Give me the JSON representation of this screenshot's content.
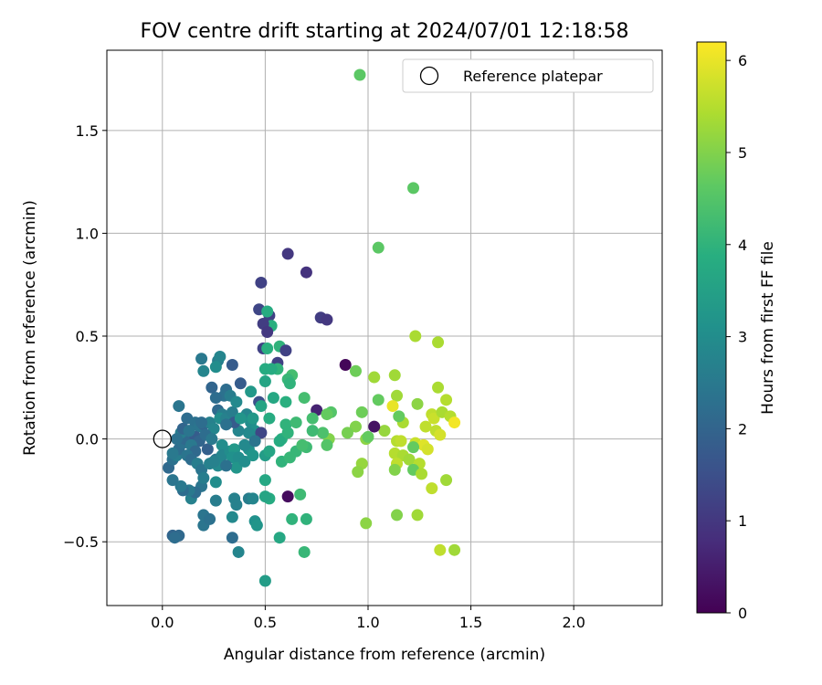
{
  "chart_data": {
    "type": "scatter",
    "title": "FOV centre drift starting at 2024/07/01 12:18:58",
    "xlabel": "Angular distance from reference (arcmin)",
    "ylabel": "Rotation from reference (arcmin)",
    "xlim": [
      -0.27,
      2.43
    ],
    "ylim": [
      -0.81,
      1.89
    ],
    "xticks": [
      0.0,
      0.5,
      1.0,
      1.5,
      2.0
    ],
    "yticks": [
      -0.5,
      0.0,
      0.5,
      1.0,
      1.5
    ],
    "xtick_labels": [
      "0.0",
      "0.5",
      "1.0",
      "1.5",
      "2.0"
    ],
    "ytick_labels": [
      "−0.5",
      "0.0",
      "0.5",
      "1.0",
      "1.5"
    ],
    "grid": true,
    "legend": {
      "placement": "top-right",
      "entries": [
        "Reference platepar"
      ]
    },
    "colormap": "viridis",
    "colorbar": {
      "label": "Hours from first FF file",
      "range": [
        0,
        6.2
      ],
      "ticks": [
        0,
        1,
        2,
        3,
        4,
        5,
        6
      ],
      "tick_labels": [
        "0",
        "1",
        "2",
        "3",
        "4",
        "5",
        "6"
      ]
    },
    "reference_point": {
      "x": 0.0,
      "y": 0.0
    },
    "points": [
      {
        "x": 0.96,
        "y": 1.77,
        "c": 4.6
      },
      {
        "x": 1.22,
        "y": 1.22,
        "c": 4.6
      },
      {
        "x": 1.05,
        "y": 0.93,
        "c": 4.6
      },
      {
        "x": 0.61,
        "y": 0.9,
        "c": 1.0
      },
      {
        "x": 0.7,
        "y": 0.81,
        "c": 0.9
      },
      {
        "x": 0.48,
        "y": 0.76,
        "c": 1.2
      },
      {
        "x": 0.47,
        "y": 0.63,
        "c": 1.3
      },
      {
        "x": 0.52,
        "y": 0.6,
        "c": 1.2
      },
      {
        "x": 0.51,
        "y": 0.62,
        "c": 3.8
      },
      {
        "x": 0.53,
        "y": 0.55,
        "c": 3.9
      },
      {
        "x": 0.49,
        "y": 0.56,
        "c": 1.1
      },
      {
        "x": 0.51,
        "y": 0.52,
        "c": 1.0
      },
      {
        "x": 0.77,
        "y": 0.59,
        "c": 1.1
      },
      {
        "x": 0.8,
        "y": 0.58,
        "c": 1.0
      },
      {
        "x": 0.49,
        "y": 0.44,
        "c": 1.2
      },
      {
        "x": 0.51,
        "y": 0.44,
        "c": 3.9
      },
      {
        "x": 0.57,
        "y": 0.45,
        "c": 4.0
      },
      {
        "x": 0.6,
        "y": 0.43,
        "c": 1.2
      },
      {
        "x": 0.56,
        "y": 0.37,
        "c": 1.2
      },
      {
        "x": 0.56,
        "y": 0.34,
        "c": 4.0
      },
      {
        "x": 0.5,
        "y": 0.34,
        "c": 3.8
      },
      {
        "x": 0.53,
        "y": 0.34,
        "c": 3.8
      },
      {
        "x": 0.63,
        "y": 0.31,
        "c": 4.3
      },
      {
        "x": 0.61,
        "y": 0.29,
        "c": 4.1
      },
      {
        "x": 0.62,
        "y": 0.27,
        "c": 4.0
      },
      {
        "x": 0.5,
        "y": 0.28,
        "c": 3.6
      },
      {
        "x": 0.38,
        "y": 0.27,
        "c": 1.8
      },
      {
        "x": 0.34,
        "y": 0.36,
        "c": 1.8
      },
      {
        "x": 0.27,
        "y": 0.38,
        "c": 2.6
      },
      {
        "x": 0.28,
        "y": 0.4,
        "c": 2.8
      },
      {
        "x": 0.26,
        "y": 0.35,
        "c": 3.0
      },
      {
        "x": 0.2,
        "y": 0.33,
        "c": 2.8
      },
      {
        "x": 0.19,
        "y": 0.39,
        "c": 2.5
      },
      {
        "x": 0.24,
        "y": 0.25,
        "c": 2.0
      },
      {
        "x": 0.31,
        "y": 0.24,
        "c": 2.2
      },
      {
        "x": 0.3,
        "y": 0.21,
        "c": 2.3
      },
      {
        "x": 0.33,
        "y": 0.21,
        "c": 2.6
      },
      {
        "x": 0.26,
        "y": 0.2,
        "c": 2.2
      },
      {
        "x": 0.43,
        "y": 0.23,
        "c": 3.3
      },
      {
        "x": 0.47,
        "y": 0.18,
        "c": 1.5
      },
      {
        "x": 0.48,
        "y": 0.16,
        "c": 3.6
      },
      {
        "x": 0.54,
        "y": 0.2,
        "c": 3.7
      },
      {
        "x": 0.6,
        "y": 0.18,
        "c": 3.9
      },
      {
        "x": 0.69,
        "y": 0.2,
        "c": 4.3
      },
      {
        "x": 0.75,
        "y": 0.14,
        "c": 0.6
      },
      {
        "x": 0.82,
        "y": 0.13,
        "c": 4.5
      },
      {
        "x": 0.8,
        "y": 0.12,
        "c": 4.7
      },
      {
        "x": 0.73,
        "y": 0.1,
        "c": 4.3
      },
      {
        "x": 0.89,
        "y": 0.36,
        "c": 0.1
      },
      {
        "x": 0.94,
        "y": 0.33,
        "c": 4.8
      },
      {
        "x": 1.03,
        "y": 0.3,
        "c": 5.3
      },
      {
        "x": 1.13,
        "y": 0.31,
        "c": 5.3
      },
      {
        "x": 1.14,
        "y": 0.21,
        "c": 5.3
      },
      {
        "x": 1.05,
        "y": 0.19,
        "c": 4.7
      },
      {
        "x": 0.97,
        "y": 0.13,
        "c": 4.8
      },
      {
        "x": 1.12,
        "y": 0.16,
        "c": 6.0
      },
      {
        "x": 1.17,
        "y": 0.08,
        "c": 5.4
      },
      {
        "x": 1.23,
        "y": 0.5,
        "c": 5.4
      },
      {
        "x": 1.34,
        "y": 0.47,
        "c": 5.4
      },
      {
        "x": 1.34,
        "y": 0.25,
        "c": 5.4
      },
      {
        "x": 1.38,
        "y": 0.19,
        "c": 5.5
      },
      {
        "x": 1.24,
        "y": 0.17,
        "c": 5.1
      },
      {
        "x": 1.31,
        "y": 0.12,
        "c": 5.6
      },
      {
        "x": 1.32,
        "y": 0.1,
        "c": 5.7
      },
      {
        "x": 1.36,
        "y": 0.13,
        "c": 5.4
      },
      {
        "x": 1.4,
        "y": 0.11,
        "c": 5.5
      },
      {
        "x": 1.42,
        "y": 0.08,
        "c": 6.1
      },
      {
        "x": 1.28,
        "y": 0.06,
        "c": 5.6
      },
      {
        "x": 1.33,
        "y": 0.04,
        "c": 5.6
      },
      {
        "x": 1.35,
        "y": 0.02,
        "c": 5.8
      },
      {
        "x": 1.23,
        "y": -0.02,
        "c": 5.7
      },
      {
        "x": 1.27,
        "y": -0.03,
        "c": 5.9
      },
      {
        "x": 1.29,
        "y": -0.05,
        "c": 5.8
      },
      {
        "x": 1.22,
        "y": -0.04,
        "c": 4.7
      },
      {
        "x": 1.15,
        "y": 0.11,
        "c": 4.7
      },
      {
        "x": 1.08,
        "y": 0.04,
        "c": 5.2
      },
      {
        "x": 1.03,
        "y": 0.06,
        "c": 0.3
      },
      {
        "x": 0.99,
        "y": 0.0,
        "c": 5.1
      },
      {
        "x": 1.0,
        "y": 0.01,
        "c": 4.7
      },
      {
        "x": 0.94,
        "y": 0.06,
        "c": 5.0
      },
      {
        "x": 0.9,
        "y": 0.03,
        "c": 4.9
      },
      {
        "x": 0.81,
        "y": 0.0,
        "c": 5.0
      },
      {
        "x": 0.8,
        "y": -0.03,
        "c": 4.5
      },
      {
        "x": 0.78,
        "y": 0.03,
        "c": 4.4
      },
      {
        "x": 0.73,
        "y": 0.04,
        "c": 4.2
      },
      {
        "x": 1.14,
        "y": -0.01,
        "c": 5.5
      },
      {
        "x": 1.16,
        "y": -0.01,
        "c": 5.6
      },
      {
        "x": 1.13,
        "y": -0.07,
        "c": 5.5
      },
      {
        "x": 1.17,
        "y": -0.08,
        "c": 5.4
      },
      {
        "x": 1.2,
        "y": -0.1,
        "c": 5.3
      },
      {
        "x": 1.14,
        "y": -0.12,
        "c": 5.6
      },
      {
        "x": 1.25,
        "y": -0.12,
        "c": 5.5
      },
      {
        "x": 1.22,
        "y": -0.15,
        "c": 4.7
      },
      {
        "x": 1.26,
        "y": -0.17,
        "c": 5.4
      },
      {
        "x": 1.13,
        "y": -0.15,
        "c": 5.0
      },
      {
        "x": 0.97,
        "y": -0.12,
        "c": 5.2
      },
      {
        "x": 0.95,
        "y": -0.16,
        "c": 5.1
      },
      {
        "x": 1.31,
        "y": -0.24,
        "c": 5.6
      },
      {
        "x": 1.38,
        "y": -0.2,
        "c": 5.3
      },
      {
        "x": 1.14,
        "y": -0.37,
        "c": 5.0
      },
      {
        "x": 1.24,
        "y": -0.37,
        "c": 5.3
      },
      {
        "x": 0.99,
        "y": -0.41,
        "c": 5.1
      },
      {
        "x": 1.35,
        "y": -0.54,
        "c": 5.6
      },
      {
        "x": 1.42,
        "y": -0.54,
        "c": 5.3
      },
      {
        "x": 0.69,
        "y": -0.55,
        "c": 4.1
      },
      {
        "x": 0.63,
        "y": -0.39,
        "c": 4.0
      },
      {
        "x": 0.7,
        "y": -0.39,
        "c": 4.0
      },
      {
        "x": 0.67,
        "y": -0.27,
        "c": 4.2
      },
      {
        "x": 0.61,
        "y": -0.28,
        "c": 0.2
      },
      {
        "x": 0.57,
        "y": -0.48,
        "c": 3.7
      },
      {
        "x": 0.5,
        "y": -0.69,
        "c": 3.4
      },
      {
        "x": 0.5,
        "y": -0.2,
        "c": 3.7
      },
      {
        "x": 0.52,
        "y": -0.29,
        "c": 3.8
      },
      {
        "x": 0.5,
        "y": -0.28,
        "c": 3.6
      },
      {
        "x": 0.45,
        "y": -0.4,
        "c": 3.1
      },
      {
        "x": 0.46,
        "y": -0.42,
        "c": 3.2
      },
      {
        "x": 0.42,
        "y": -0.29,
        "c": 2.6
      },
      {
        "x": 0.44,
        "y": -0.29,
        "c": 2.8
      },
      {
        "x": 0.35,
        "y": -0.29,
        "c": 2.7
      },
      {
        "x": 0.36,
        "y": -0.32,
        "c": 2.7
      },
      {
        "x": 0.34,
        "y": -0.38,
        "c": 2.9
      },
      {
        "x": 0.34,
        "y": -0.48,
        "c": 2.2
      },
      {
        "x": 0.37,
        "y": -0.55,
        "c": 2.8
      },
      {
        "x": 0.26,
        "y": -0.3,
        "c": 2.6
      },
      {
        "x": 0.2,
        "y": -0.42,
        "c": 2.4
      },
      {
        "x": 0.2,
        "y": -0.37,
        "c": 2.4
      },
      {
        "x": 0.23,
        "y": -0.39,
        "c": 2.3
      },
      {
        "x": 0.26,
        "y": -0.21,
        "c": 3.0
      },
      {
        "x": 0.19,
        "y": -0.23,
        "c": 2.4
      },
      {
        "x": 0.14,
        "y": -0.29,
        "c": 2.7
      },
      {
        "x": 0.16,
        "y": -0.26,
        "c": 2.2
      },
      {
        "x": 0.13,
        "y": -0.25,
        "c": 2.5
      },
      {
        "x": 0.1,
        "y": -0.25,
        "c": 2.2
      },
      {
        "x": 0.09,
        "y": -0.23,
        "c": 2.5
      },
      {
        "x": 0.05,
        "y": -0.2,
        "c": 2.4
      },
      {
        "x": 0.08,
        "y": -0.47,
        "c": 2.1
      },
      {
        "x": 0.05,
        "y": -0.47,
        "c": 2.0
      },
      {
        "x": 0.06,
        "y": -0.48,
        "c": 2.2
      },
      {
        "x": 0.03,
        "y": -0.14,
        "c": 2.1
      },
      {
        "x": 0.05,
        "y": -0.1,
        "c": 2.3
      },
      {
        "x": 0.07,
        "y": -0.08,
        "c": 2.6
      },
      {
        "x": 0.08,
        "y": -0.05,
        "c": 2.2
      },
      {
        "x": 0.05,
        "y": -0.07,
        "c": 2.5
      },
      {
        "x": 0.1,
        "y": -0.02,
        "c": 2.3
      },
      {
        "x": 0.11,
        "y": 0.0,
        "c": 2.1
      },
      {
        "x": 0.09,
        "y": 0.03,
        "c": 2.6
      },
      {
        "x": 0.1,
        "y": 0.05,
        "c": 2.0
      },
      {
        "x": 0.12,
        "y": 0.1,
        "c": 2.2
      },
      {
        "x": 0.08,
        "y": 0.16,
        "c": 2.4
      },
      {
        "x": 0.16,
        "y": 0.08,
        "c": 2.3
      },
      {
        "x": 0.18,
        "y": 0.06,
        "c": 2.4
      },
      {
        "x": 0.2,
        "y": 0.07,
        "c": 2.0
      },
      {
        "x": 0.23,
        "y": 0.08,
        "c": 2.7
      },
      {
        "x": 0.25,
        "y": 0.05,
        "c": 2.8
      },
      {
        "x": 0.27,
        "y": 0.14,
        "c": 2.1
      },
      {
        "x": 0.29,
        "y": 0.12,
        "c": 2.6
      },
      {
        "x": 0.28,
        "y": 0.1,
        "c": 3.0
      },
      {
        "x": 0.31,
        "y": 0.1,
        "c": 2.7
      },
      {
        "x": 0.34,
        "y": 0.13,
        "c": 2.6
      },
      {
        "x": 0.36,
        "y": 0.18,
        "c": 2.9
      },
      {
        "x": 0.41,
        "y": 0.12,
        "c": 2.8
      },
      {
        "x": 0.43,
        "y": 0.08,
        "c": 3.0
      },
      {
        "x": 0.44,
        "y": 0.1,
        "c": 3.3
      },
      {
        "x": 0.45,
        "y": 0.04,
        "c": 3.1
      },
      {
        "x": 0.48,
        "y": 0.03,
        "c": 1.3
      },
      {
        "x": 0.52,
        "y": 0.1,
        "c": 3.8
      },
      {
        "x": 0.58,
        "y": 0.0,
        "c": 3.9
      },
      {
        "x": 0.6,
        "y": 0.07,
        "c": 4.0
      },
      {
        "x": 0.61,
        "y": 0.03,
        "c": 4.0
      },
      {
        "x": 0.65,
        "y": 0.08,
        "c": 4.2
      },
      {
        "x": 0.42,
        "y": 0.03,
        "c": 2.9
      },
      {
        "x": 0.37,
        "y": 0.04,
        "c": 2.8
      },
      {
        "x": 0.35,
        "y": 0.08,
        "c": 1.8
      },
      {
        "x": 0.38,
        "y": 0.1,
        "c": 3.2
      },
      {
        "x": 0.31,
        "y": 0.07,
        "c": 2.3
      },
      {
        "x": 0.16,
        "y": 0.01,
        "c": 1.8
      },
      {
        "x": 0.18,
        "y": -0.01,
        "c": 2.0
      },
      {
        "x": 0.21,
        "y": 0.02,
        "c": 2.2
      },
      {
        "x": 0.14,
        "y": -0.03,
        "c": 2.5
      },
      {
        "x": 0.16,
        "y": -0.06,
        "c": 2.1
      },
      {
        "x": 0.12,
        "y": -0.08,
        "c": 2.4
      },
      {
        "x": 0.14,
        "y": -0.1,
        "c": 2.2
      },
      {
        "x": 0.17,
        "y": -0.12,
        "c": 2.6
      },
      {
        "x": 0.19,
        "y": -0.15,
        "c": 2.4
      },
      {
        "x": 0.2,
        "y": -0.19,
        "c": 2.6
      },
      {
        "x": 0.23,
        "y": -0.12,
        "c": 2.7
      },
      {
        "x": 0.26,
        "y": -0.1,
        "c": 2.4
      },
      {
        "x": 0.27,
        "y": -0.13,
        "c": 2.9
      },
      {
        "x": 0.29,
        "y": -0.03,
        "c": 3.0
      },
      {
        "x": 0.29,
        "y": -0.08,
        "c": 2.8
      },
      {
        "x": 0.33,
        "y": -0.06,
        "c": 3.0
      },
      {
        "x": 0.35,
        "y": -0.05,
        "c": 3.3
      },
      {
        "x": 0.34,
        "y": -0.09,
        "c": 3.1
      },
      {
        "x": 0.37,
        "y": -0.09,
        "c": 3.0
      },
      {
        "x": 0.36,
        "y": -0.14,
        "c": 3.2
      },
      {
        "x": 0.4,
        "y": -0.11,
        "c": 3.0
      },
      {
        "x": 0.42,
        "y": -0.05,
        "c": 3.1
      },
      {
        "x": 0.4,
        "y": -0.03,
        "c": 2.9
      },
      {
        "x": 0.45,
        "y": -0.01,
        "c": 2.4
      },
      {
        "x": 0.44,
        "y": -0.08,
        "c": 3.2
      },
      {
        "x": 0.5,
        "y": -0.08,
        "c": 3.4
      },
      {
        "x": 0.52,
        "y": -0.06,
        "c": 3.6
      },
      {
        "x": 0.57,
        "y": -0.01,
        "c": 3.8
      },
      {
        "x": 0.58,
        "y": -0.11,
        "c": 4.0
      },
      {
        "x": 0.62,
        "y": -0.09,
        "c": 4.1
      },
      {
        "x": 0.65,
        "y": -0.06,
        "c": 4.1
      },
      {
        "x": 0.7,
        "y": -0.04,
        "c": 4.2
      },
      {
        "x": 0.68,
        "y": -0.03,
        "c": 4.3
      },
      {
        "x": 0.22,
        "y": -0.05,
        "c": 1.9
      },
      {
        "x": 0.24,
        "y": 0.0,
        "c": 2.5
      },
      {
        "x": 0.31,
        "y": -0.13,
        "c": 2.3
      },
      {
        "x": 0.25,
        "y": -0.11,
        "c": 2.7
      },
      {
        "x": 0.07,
        "y": 0.0,
        "c": 2.3
      },
      {
        "x": 0.13,
        "y": 0.04,
        "c": 2.4
      },
      {
        "x": 0.19,
        "y": 0.08,
        "c": 2.2
      }
    ]
  }
}
